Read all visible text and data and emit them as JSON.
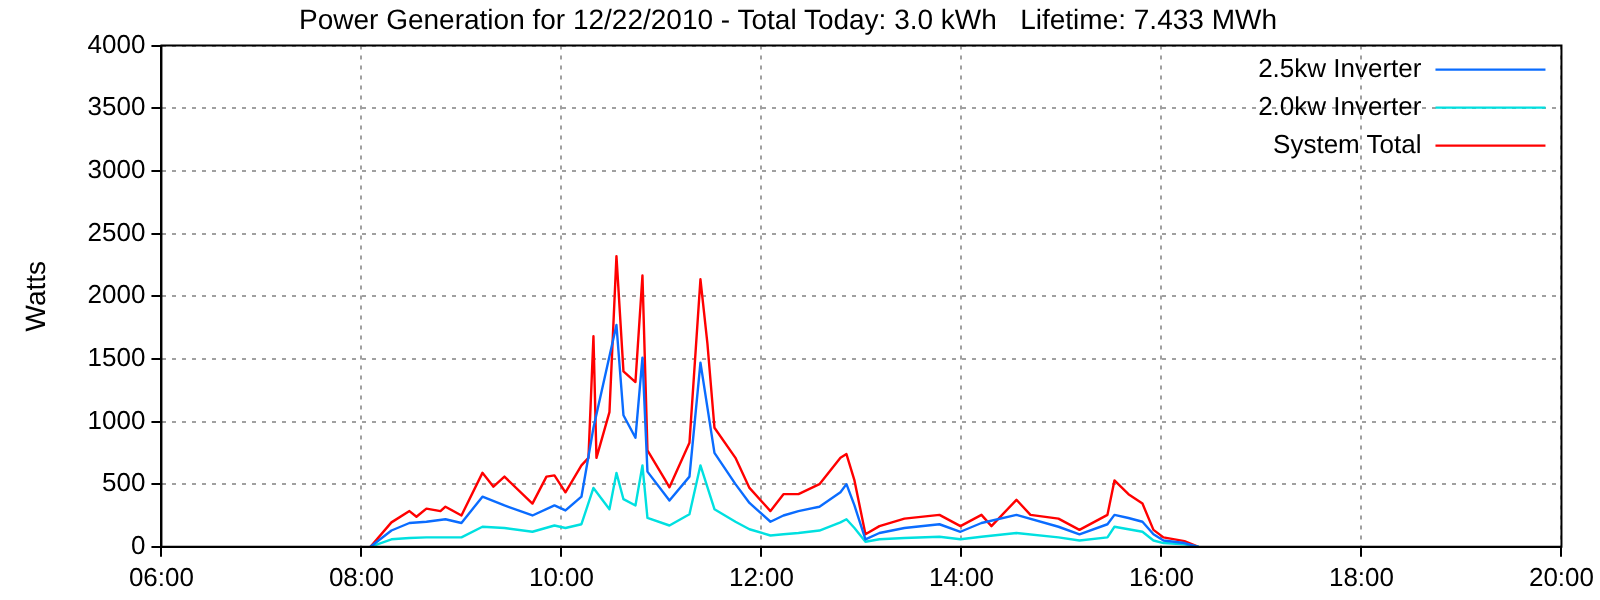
{
  "chart_data": {
    "type": "line",
    "title": "Power Generation for 12/22/2010 - Total Today: 3.0 kWh   Lifetime: 7.433 MWh",
    "ylabel": "Watts",
    "xlim": [
      6,
      20
    ],
    "xticks": [
      {
        "value": 6,
        "label": "06:00"
      },
      {
        "value": 8,
        "label": "08:00"
      },
      {
        "value": 10,
        "label": "10:00"
      },
      {
        "value": 12,
        "label": "12:00"
      },
      {
        "value": 14,
        "label": "14:00"
      },
      {
        "value": 16,
        "label": "16:00"
      },
      {
        "value": 18,
        "label": "18:00"
      },
      {
        "value": 20,
        "label": "20:00"
      }
    ],
    "ylim": [
      0,
      4000
    ],
    "yticks": [
      0,
      500,
      1000,
      1500,
      2000,
      2500,
      3000,
      3500,
      4000
    ],
    "grid": true,
    "legend": "top right",
    "marker": "none",
    "line_style": "solid",
    "series": [
      {
        "name": "2.5kw Inverter",
        "color": "#0a6cff",
        "x": [
          8.09,
          8.3,
          8.48,
          8.65,
          8.84,
          9.0,
          9.21,
          9.43,
          9.71,
          9.93,
          10.04,
          10.2,
          10.32,
          10.55,
          10.62,
          10.74,
          10.81,
          10.86,
          11.08,
          11.28,
          11.39,
          11.53,
          11.74,
          11.88,
          12.09,
          12.22,
          12.37,
          12.58,
          12.79,
          12.85,
          12.93,
          13.04,
          13.18,
          13.43,
          13.78,
          13.99,
          14.2,
          14.55,
          14.97,
          15.18,
          15.46,
          15.53,
          15.67,
          15.81,
          15.92,
          16.02,
          16.23,
          16.37
        ],
        "values": [
          0,
          130,
          190,
          200,
          220,
          190,
          400,
          330,
          250,
          330,
          290,
          400,
          950,
          1770,
          1050,
          870,
          1510,
          600,
          370,
          560,
          1470,
          750,
          500,
          350,
          200,
          250,
          285,
          320,
          435,
          500,
          330,
          60,
          110,
          150,
          180,
          120,
          190,
          255,
          160,
          100,
          180,
          255,
          230,
          200,
          100,
          50,
          30,
          0
        ]
      },
      {
        "name": "2.0kw Inverter",
        "color": "#00e0e0",
        "x": [
          8.09,
          8.3,
          8.48,
          8.65,
          9.0,
          9.21,
          9.43,
          9.71,
          9.93,
          10.04,
          10.2,
          10.32,
          10.48,
          10.55,
          10.62,
          10.74,
          10.81,
          10.86,
          11.08,
          11.28,
          11.39,
          11.53,
          11.74,
          11.88,
          12.09,
          12.22,
          12.37,
          12.58,
          12.79,
          12.85,
          12.93,
          13.04,
          13.18,
          13.43,
          13.78,
          13.99,
          14.2,
          14.55,
          14.97,
          15.18,
          15.46,
          15.53,
          15.67,
          15.81,
          15.92,
          16.02,
          16.23,
          16.37
        ],
        "values": [
          0,
          60,
          70,
          75,
          75,
          160,
          150,
          120,
          170,
          150,
          180,
          470,
          300,
          590,
          380,
          330,
          650,
          230,
          170,
          260,
          650,
          300,
          200,
          140,
          90,
          100,
          110,
          130,
          195,
          220,
          150,
          40,
          60,
          70,
          80,
          60,
          80,
          110,
          75,
          50,
          75,
          160,
          140,
          120,
          50,
          30,
          20,
          0
        ]
      },
      {
        "name": "System Total",
        "color": "#ff0000",
        "x": [
          8.09,
          8.3,
          8.48,
          8.55,
          8.65,
          8.79,
          8.84,
          9.0,
          9.21,
          9.32,
          9.43,
          9.71,
          9.85,
          9.93,
          10.04,
          10.2,
          10.27,
          10.32,
          10.35,
          10.48,
          10.55,
          10.62,
          10.74,
          10.81,
          10.86,
          11.04,
          11.08,
          11.28,
          11.39,
          11.46,
          11.53,
          11.74,
          11.88,
          12.09,
          12.22,
          12.37,
          12.58,
          12.79,
          12.85,
          12.93,
          13.04,
          13.18,
          13.43,
          13.78,
          13.99,
          14.2,
          14.3,
          14.55,
          14.69,
          14.97,
          15.18,
          15.46,
          15.53,
          15.67,
          15.81,
          15.92,
          16.02,
          16.23,
          16.37
        ],
        "values": [
          0,
          195,
          285,
          240,
          305,
          285,
          320,
          250,
          590,
          480,
          560,
          345,
          560,
          570,
          435,
          650,
          710,
          1680,
          710,
          1075,
          2320,
          1400,
          1315,
          2165,
          770,
          530,
          475,
          830,
          2135,
          1620,
          950,
          710,
          470,
          285,
          420,
          420,
          500,
          710,
          740,
          530,
          100,
          165,
          225,
          255,
          165,
          255,
          165,
          375,
          255,
          225,
          135,
          255,
          530,
          420,
          345,
          135,
          75,
          45,
          0
        ]
      }
    ]
  }
}
